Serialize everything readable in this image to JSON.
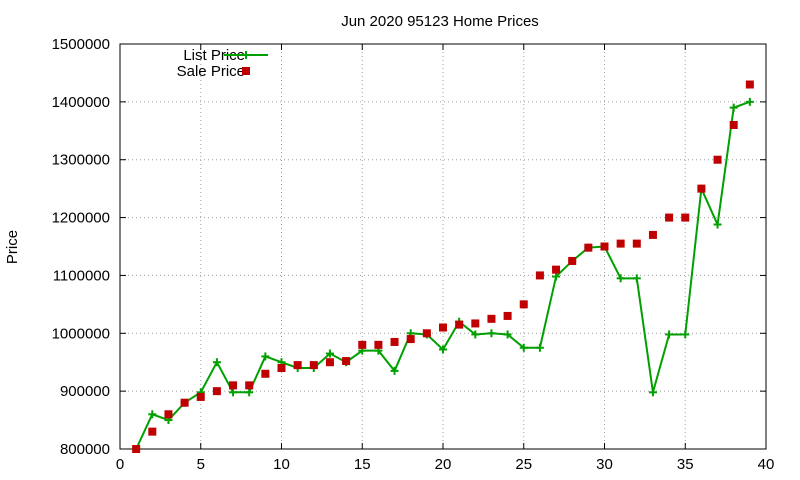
{
  "chart_data": {
    "type": "line",
    "title": "Jun 2020 95123 Home Prices",
    "xlabel": "",
    "ylabel": "Price",
    "xlim": [
      0,
      40
    ],
    "ylim": [
      800000,
      1500000
    ],
    "x_ticks": [
      0,
      5,
      10,
      15,
      20,
      25,
      30,
      35,
      40
    ],
    "y_ticks": [
      800000,
      900000,
      1000000,
      1100000,
      1200000,
      1300000,
      1400000,
      1500000
    ],
    "grid": true,
    "legend_position": "top-left",
    "series": [
      {
        "name": "List Price",
        "style": "linespoints",
        "color": "#00a000",
        "x": [
          1,
          2,
          3,
          4,
          5,
          6,
          7,
          8,
          9,
          10,
          11,
          12,
          13,
          14,
          15,
          16,
          17,
          18,
          19,
          20,
          21,
          22,
          23,
          24,
          25,
          26,
          27,
          28,
          29,
          30,
          31,
          32,
          33,
          34,
          35,
          36,
          37,
          38,
          39
        ],
        "values": [
          800000,
          860000,
          850000,
          880000,
          898000,
          950000,
          898000,
          898000,
          960000,
          950000,
          940000,
          940000,
          965000,
          950000,
          970000,
          970000,
          935000,
          1000000,
          998000,
          972000,
          1020000,
          998000,
          1000000,
          998000,
          975000,
          975000,
          1098000,
          1125000,
          1148000,
          1150000,
          1095000,
          1095000,
          898000,
          998000,
          998000,
          1250000,
          1188000,
          1390000,
          1400000
        ]
      },
      {
        "name": "Sale Price",
        "style": "points",
        "color": "#c00000",
        "x": [
          1,
          2,
          3,
          4,
          5,
          6,
          7,
          8,
          9,
          10,
          11,
          12,
          13,
          14,
          15,
          16,
          17,
          18,
          19,
          20,
          21,
          22,
          23,
          24,
          25,
          26,
          27,
          28,
          29,
          30,
          31,
          32,
          33,
          34,
          35,
          36,
          37,
          38,
          39
        ],
        "values": [
          800000,
          830000,
          860000,
          880000,
          890000,
          900000,
          910000,
          910000,
          930000,
          940000,
          945000,
          945000,
          950000,
          952000,
          980000,
          980000,
          985000,
          990000,
          1000000,
          1010000,
          1015000,
          1017000,
          1025000,
          1030000,
          1050000,
          1100000,
          1110000,
          1125000,
          1148000,
          1150000,
          1155000,
          1155000,
          1170000,
          1200000,
          1200000,
          1250000,
          1300000,
          1360000,
          1430000
        ]
      }
    ]
  }
}
